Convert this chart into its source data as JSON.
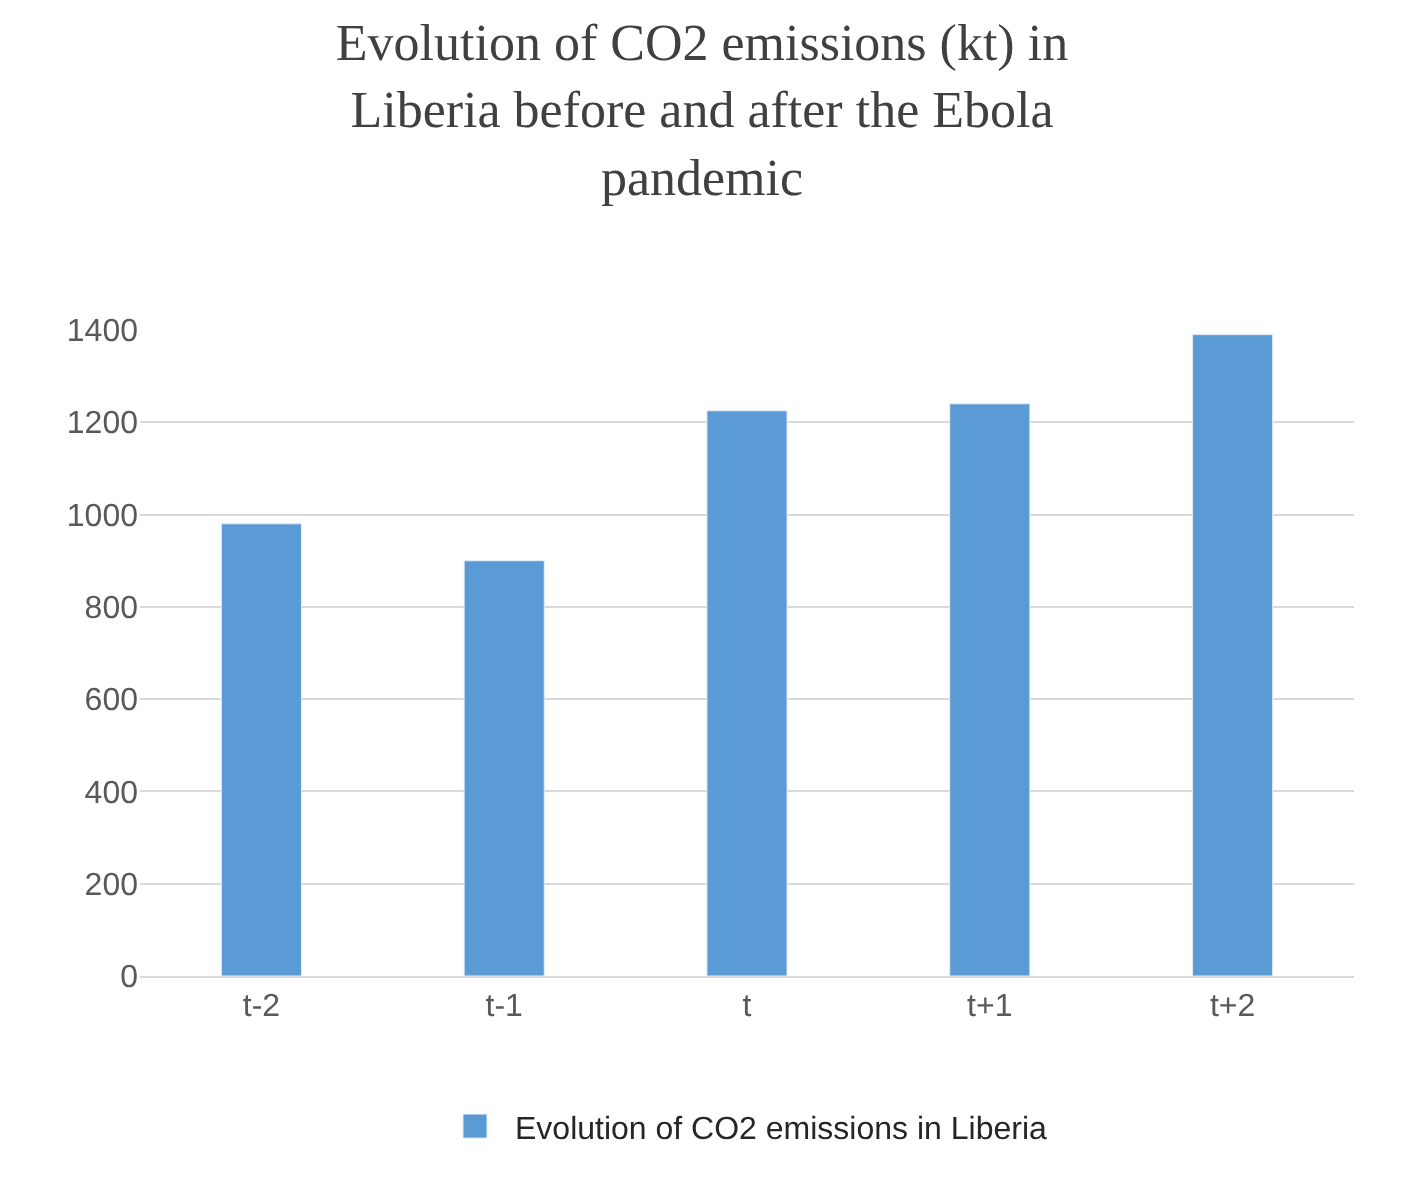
{
  "chart_data": {
    "type": "bar",
    "title": "Evolution of CO2 emissions (kt) in Liberia before and after the Ebola pandemic",
    "categories": [
      "t-2",
      "t-1",
      "t",
      "t+1",
      "t+2"
    ],
    "series": [
      {
        "name": "Evolution of CO2 emissions in Liberia",
        "color": "#5b9bd5",
        "values": [
          980,
          900,
          1225,
          1240,
          1390
        ]
      }
    ],
    "ylim": [
      0,
      1400
    ],
    "yticks": [
      0,
      200,
      400,
      600,
      800,
      1000,
      1200,
      1400
    ],
    "grid": "y",
    "legend": "bottom"
  }
}
